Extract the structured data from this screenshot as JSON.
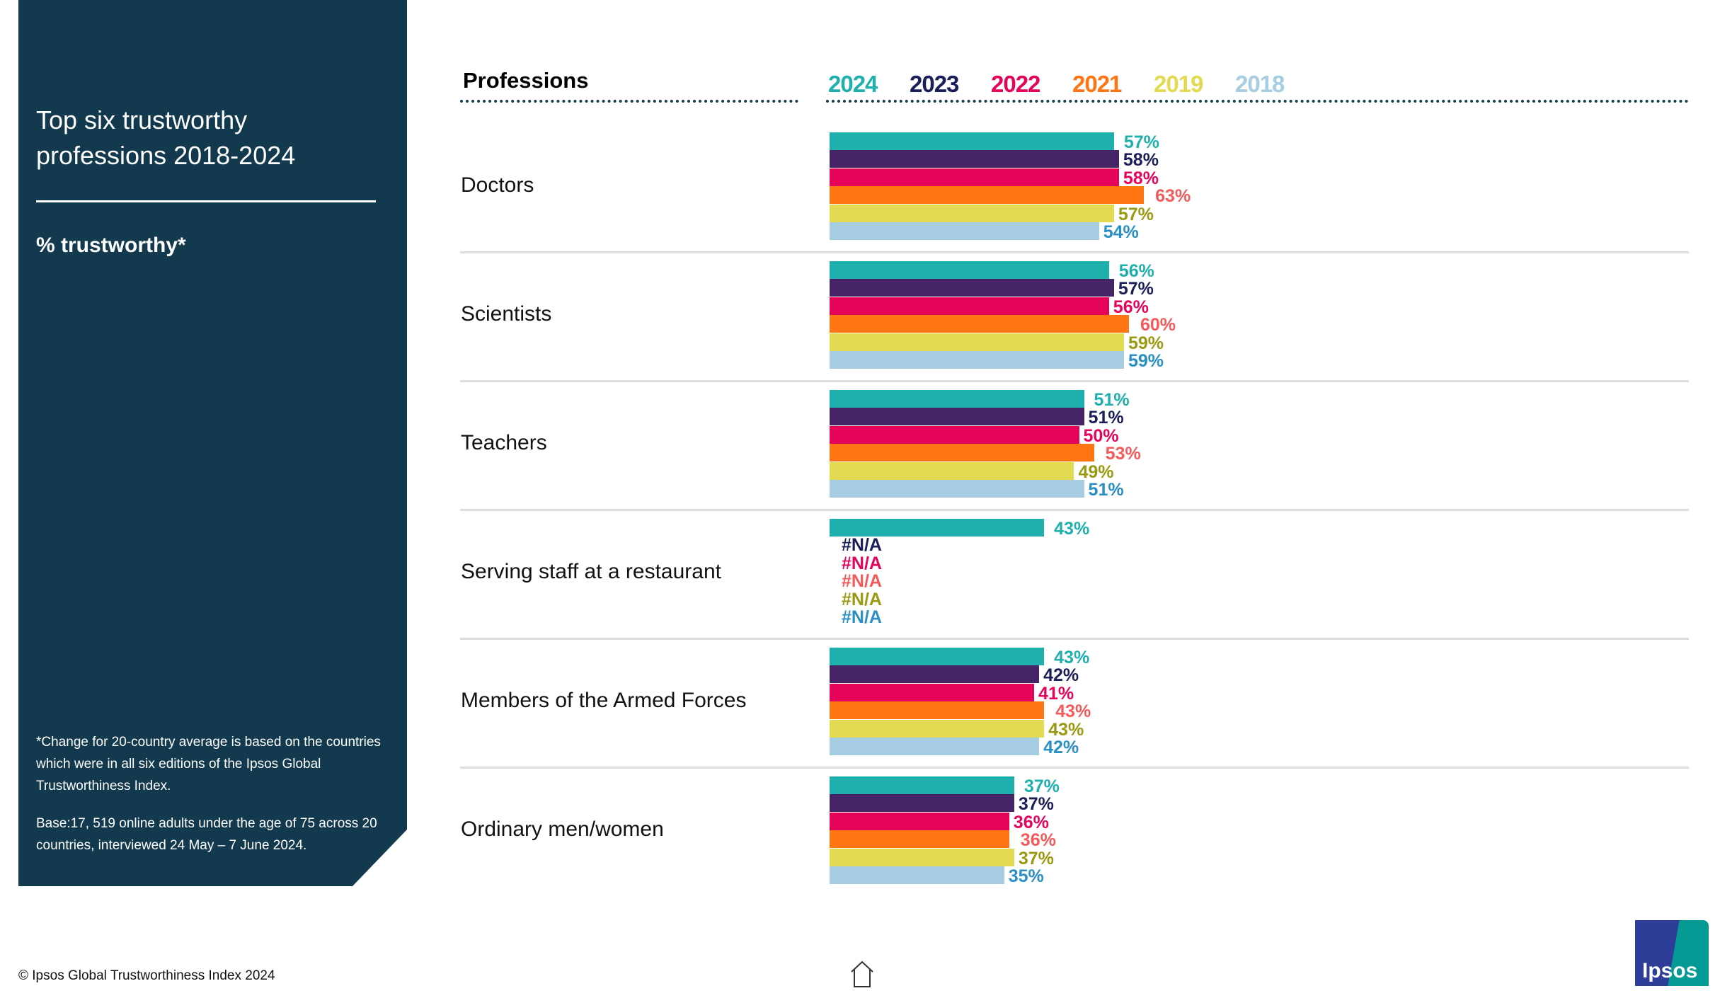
{
  "sidebar": {
    "title": "Top six trustworthy professions 2018-2024",
    "subtitle": "% trustworthy*",
    "note1": "*Change for 20-country average is based on the countries which were in all  six editions of the Ipsos Global Trustworthiness Index.",
    "note2": "Base:17, 519 online adults under the age of 75 across 20 countries, interviewed 24 May – 7 June 2024."
  },
  "footer": {
    "copyright": "© Ipsos Global Trustworthiness Index 2024",
    "logo": "Ipsos"
  },
  "colors": {
    "bars": [
      "#1fb0ad",
      "#452565",
      "#e5045a",
      "#ff7514",
      "#e2db52",
      "#a7cde2"
    ],
    "labels": [
      "#1fb0ad",
      "#1a1f5a",
      "#e5045a",
      "#f45a5a",
      "#9a9a12",
      "#2a8fc4"
    ],
    "legend": [
      "#1fb0ad",
      "#1a1f5a",
      "#e5045a",
      "#ff7514",
      "#e2db52",
      "#a7cde2"
    ]
  },
  "chart_data": {
    "type": "bar",
    "orientation": "horizontal",
    "title": "Top six trustworthy professions 2018-2024",
    "ylabel": "Professions",
    "xlabel": "% trustworthy",
    "categories": [
      "Doctors",
      "Scientists",
      "Teachers",
      "Serving staff at a restaurant",
      "Members of the Armed Forces",
      "Ordinary men/women"
    ],
    "series": [
      {
        "name": "2024",
        "values": [
          57,
          56,
          51,
          43,
          43,
          37
        ]
      },
      {
        "name": "2023",
        "values": [
          58,
          57,
          51,
          null,
          42,
          37
        ]
      },
      {
        "name": "2022",
        "values": [
          58,
          56,
          50,
          null,
          41,
          36
        ]
      },
      {
        "name": "2021",
        "values": [
          63,
          60,
          53,
          null,
          43,
          36
        ]
      },
      {
        "name": "2019",
        "values": [
          57,
          59,
          49,
          null,
          43,
          37
        ]
      },
      {
        "name": "2018",
        "values": [
          54,
          59,
          51,
          null,
          42,
          35
        ]
      }
    ],
    "missing_label": "#N/A",
    "value_suffix": "%",
    "xlim": [
      0,
      100
    ],
    "legend": "top"
  }
}
